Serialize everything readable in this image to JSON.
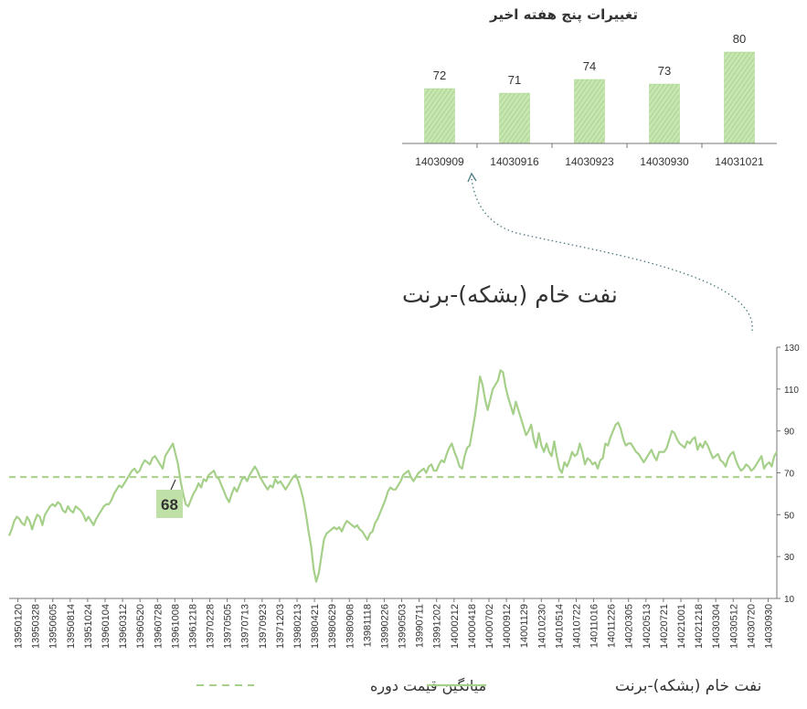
{
  "colors": {
    "series": "#a6d08a",
    "bar_fill": "#bfe0a6",
    "bar_stroke": "#9ccc7e",
    "axis": "#777777",
    "text": "#333333",
    "arrow": "#4a7a80"
  },
  "chart_data": [
    {
      "type": "bar",
      "title": "تغییرات پنج هفته اخیر",
      "categories": [
        "14030909",
        "14030916",
        "14030923",
        "14030930",
        "14031021"
      ],
      "values": [
        72,
        71,
        74,
        73,
        80
      ],
      "ylim": [
        60,
        82
      ],
      "grid": false
    },
    {
      "type": "line",
      "title": "نفت خام (بشکه)-برنت",
      "ylim": [
        10,
        130
      ],
      "yticks": [
        10,
        30,
        50,
        70,
        90,
        110,
        130
      ],
      "y_axis_side": "right",
      "grid": false,
      "x_tick_labels": [
        "13950120",
        "13950328",
        "13950605",
        "13950814",
        "13951024",
        "13960104",
        "13960312",
        "13960520",
        "13960728",
        "13961008",
        "13961218",
        "13970228",
        "13970505",
        "13970713",
        "13970923",
        "13971203",
        "13980213",
        "13980421",
        "13980629",
        "13980908",
        "13981118",
        "13990226",
        "13990503",
        "13990711",
        "13991202",
        "14000212",
        "14000418",
        "14000702",
        "14000912",
        "14001129",
        "14010230",
        "14010514",
        "14010722",
        "14011016",
        "14011226",
        "14020305",
        "14020513",
        "14020721",
        "14021001",
        "14021218",
        "14030304",
        "14030512",
        "14030720",
        "14030930"
      ],
      "series": [
        {
          "name": "نفت خام (بشکه)-برنت",
          "style": "solid",
          "values": [
            40,
            43,
            47,
            49,
            48,
            46,
            45,
            49,
            47,
            43,
            47,
            50,
            49,
            45,
            50,
            52,
            54,
            55,
            54,
            56,
            55,
            52,
            51,
            54,
            52,
            51,
            54,
            53,
            52,
            50,
            47,
            49,
            47,
            45,
            48,
            50,
            52,
            54,
            55,
            55,
            57,
            60,
            62,
            64,
            63,
            65,
            67,
            69,
            71,
            72,
            70,
            71,
            74,
            76,
            75,
            74,
            77,
            78,
            76,
            74,
            72,
            78,
            80,
            82,
            84,
            79,
            74,
            66,
            60,
            55,
            54,
            57,
            60,
            62,
            65,
            63,
            67,
            66,
            69,
            70,
            71,
            68,
            67,
            64,
            61,
            58,
            56,
            60,
            63,
            61,
            64,
            67,
            68,
            66,
            69,
            71,
            73,
            71,
            68,
            66,
            64,
            62,
            64,
            63,
            67,
            65,
            66,
            64,
            62,
            64,
            66,
            68,
            69,
            66,
            62,
            57,
            50,
            42,
            35,
            24,
            18,
            22,
            30,
            38,
            41,
            42,
            43,
            44,
            43,
            44,
            42,
            45,
            47,
            46,
            45,
            44,
            45,
            43,
            42,
            40,
            38,
            41,
            42,
            46,
            48,
            51,
            54,
            57,
            61,
            63,
            62,
            62,
            64,
            66,
            69,
            70,
            71,
            68,
            66,
            68,
            70,
            71,
            72,
            70,
            73,
            74,
            71,
            71,
            74,
            76,
            75,
            79,
            82,
            84,
            80,
            77,
            73,
            72,
            78,
            82,
            83,
            90,
            97,
            106,
            116,
            112,
            105,
            100,
            105,
            110,
            112,
            114,
            119,
            118,
            111,
            106,
            102,
            98,
            104,
            100,
            96,
            92,
            88,
            90,
            93,
            86,
            82,
            89,
            83,
            80,
            84,
            80,
            78,
            85,
            78,
            72,
            70,
            75,
            73,
            76,
            80,
            78,
            79,
            84,
            80,
            74,
            77,
            76,
            74,
            75,
            72,
            76,
            77,
            84,
            83,
            87,
            90,
            93,
            94,
            91,
            86,
            83,
            84,
            84,
            82,
            80,
            79,
            77,
            75,
            77,
            79,
            81,
            78,
            76,
            80,
            80,
            80,
            82,
            86,
            90,
            89,
            86,
            84,
            83,
            82,
            85,
            84,
            86,
            87,
            81,
            84,
            82,
            85,
            83,
            80,
            77,
            78,
            79,
            76,
            75,
            73,
            77,
            79,
            80,
            76,
            73,
            71,
            72,
            74,
            73,
            71,
            72,
            74,
            76,
            78,
            72,
            74,
            75,
            73,
            78,
            80
          ]
        },
        {
          "name": "میانگین قیمت دوره",
          "style": "dashed",
          "values": [
            68
          ]
        }
      ],
      "annotations": [
        {
          "text": "68",
          "value": 68
        }
      ],
      "legend_position": "bottom",
      "legend": [
        "نفت خام (بشکه)-برنت",
        "میانگین قیمت دوره"
      ]
    }
  ]
}
